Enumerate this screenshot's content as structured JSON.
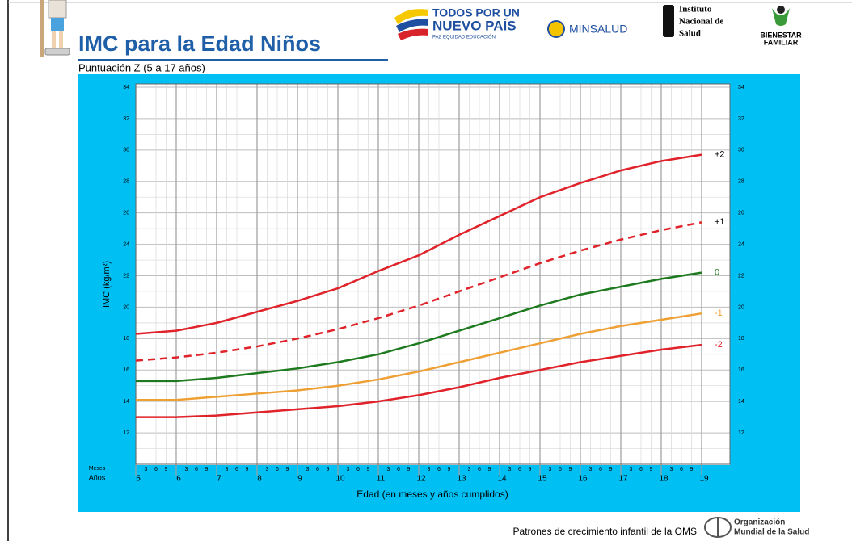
{
  "header": {
    "logo1_line1": "TODOS POR UN",
    "logo1_line2": "NUEVO PAÍS",
    "logo1_tagline": "PAZ  EQUIDAD  EDUCACIÓN",
    "logo2": "MINSALUD",
    "logo3_line1": "Instituto",
    "logo3_line2": "Nacional de",
    "logo3_line3": "Salud",
    "logo4_line1": "BIENESTAR",
    "logo4_line2": "FAMILIAR"
  },
  "chart_data": {
    "type": "line",
    "title": "IMC para la Edad Niños",
    "subtitle": "Puntuación Z (5 a 17 años)",
    "y_label": "IMC (kg/m²)",
    "x_label": "Edad (en meses y años cumplidos)",
    "x_row_labels": {
      "months": "Meses",
      "years": "Años"
    },
    "x": [
      5,
      6,
      7,
      8,
      9,
      10,
      11,
      12,
      13,
      14,
      15,
      16,
      17,
      18,
      19
    ],
    "xlim": [
      5,
      19.7
    ],
    "xticks": [
      5,
      6,
      7,
      8,
      9,
      10,
      11,
      12,
      13,
      14,
      15,
      16,
      17,
      18,
      19
    ],
    "month_ticks": [
      3,
      6,
      9
    ],
    "ylim": [
      10,
      34
    ],
    "yticks": [
      12,
      14,
      16,
      18,
      20,
      22,
      24,
      26,
      28,
      30,
      32,
      34
    ],
    "yminor_ticks": [
      11,
      13,
      15,
      17,
      19,
      21,
      23,
      25,
      27,
      29,
      31,
      33
    ],
    "grid": true,
    "series": [
      {
        "name": "+2",
        "color": "#e0222a",
        "label_color": "#000000",
        "dash": false,
        "values": [
          18.3,
          18.5,
          19.0,
          19.7,
          20.4,
          21.2,
          22.3,
          23.3,
          24.6,
          25.8,
          27.0,
          27.9,
          28.7,
          29.3,
          29.7
        ]
      },
      {
        "name": "+1",
        "color": "#e0222a",
        "label_color": "#000000",
        "dash": true,
        "values": [
          16.6,
          16.8,
          17.1,
          17.5,
          18.0,
          18.6,
          19.3,
          20.1,
          21.0,
          21.9,
          22.8,
          23.6,
          24.3,
          24.9,
          25.4
        ]
      },
      {
        "name": "0",
        "color": "#1e7a1e",
        "label_color": "#1e7a1e",
        "dash": false,
        "values": [
          15.3,
          15.3,
          15.5,
          15.8,
          16.1,
          16.5,
          17.0,
          17.7,
          18.5,
          19.3,
          20.1,
          20.8,
          21.3,
          21.8,
          22.2
        ]
      },
      {
        "name": "-1",
        "color": "#efa035",
        "label_color": "#efa035",
        "dash": false,
        "values": [
          14.1,
          14.1,
          14.3,
          14.5,
          14.7,
          15.0,
          15.4,
          15.9,
          16.5,
          17.1,
          17.7,
          18.3,
          18.8,
          19.2,
          19.6
        ]
      },
      {
        "name": "-2",
        "color": "#e0222a",
        "label_color": "#e0222a",
        "dash": false,
        "values": [
          13.0,
          13.0,
          13.1,
          13.3,
          13.5,
          13.7,
          14.0,
          14.4,
          14.9,
          15.5,
          16.0,
          16.5,
          16.9,
          17.3,
          17.6
        ]
      }
    ]
  },
  "footer": {
    "source": "Patrones de crecimiento infantil de la OMS",
    "org_line1": "Organización",
    "org_line2": "Mundial de la Salud"
  }
}
